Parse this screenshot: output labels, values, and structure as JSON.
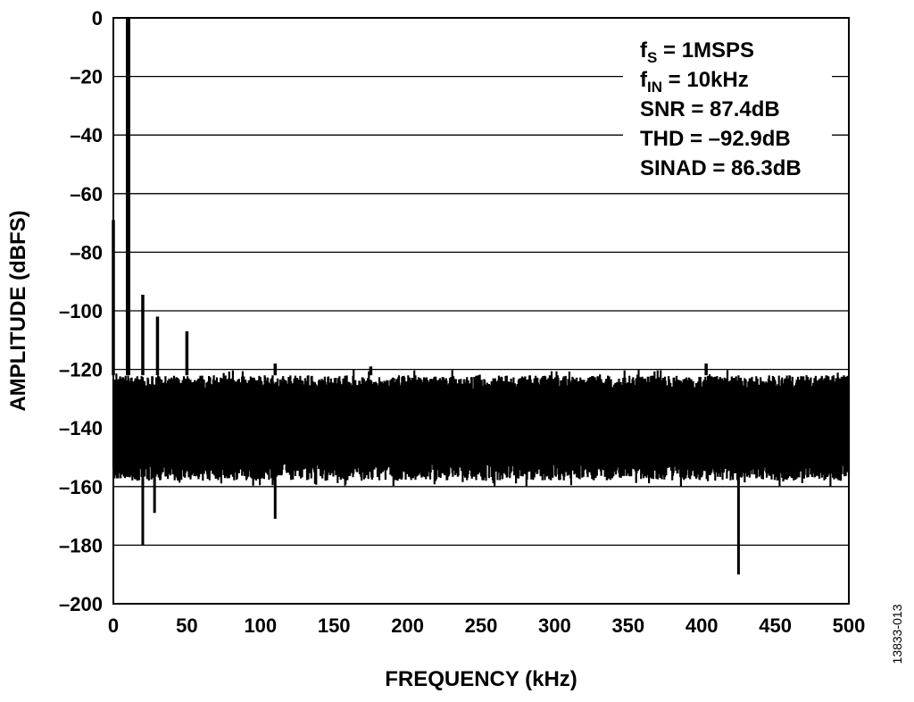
{
  "chart_data": {
    "type": "line",
    "title": "",
    "xlabel": "FREQUENCY (kHz)",
    "ylabel": "AMPLITUDE (dBFS)",
    "xlim": [
      0,
      500
    ],
    "ylim": [
      -200,
      0
    ],
    "x_ticks": [
      0,
      50,
      100,
      150,
      200,
      250,
      300,
      350,
      400,
      450,
      500
    ],
    "y_ticks": [
      0,
      -20,
      -40,
      -60,
      -80,
      -100,
      -120,
      -140,
      -160,
      -180,
      -200
    ],
    "y_tick_labels": [
      "0",
      "–20",
      "–40",
      "–60",
      "–80",
      "–100",
      "–120",
      "–140",
      "–160",
      "–180",
      "–200"
    ],
    "grid": "horizontal",
    "line_color": "#000000",
    "annotations": [
      {
        "base": "f",
        "sub": "S",
        "rest": " = 1MSPS"
      },
      {
        "base": "f",
        "sub": "IN",
        "rest": " = 10kHz"
      },
      {
        "base": "SNR = 87.4dB",
        "sub": "",
        "rest": ""
      },
      {
        "base": "THD = –92.9dB",
        "sub": "",
        "rest": ""
      },
      {
        "base": "SINAD = 86.3dB",
        "sub": "",
        "rest": ""
      }
    ],
    "annotation_placement": "top-right",
    "spurs": [
      {
        "x": 0,
        "y": -69
      },
      {
        "x": 10,
        "y": 0
      },
      {
        "x": 20,
        "y": -94.5
      },
      {
        "x": 30,
        "y": -102
      },
      {
        "x": 50,
        "y": -107
      },
      {
        "x": 110,
        "y": -118
      },
      {
        "x": 175,
        "y": -119
      },
      {
        "x": 403,
        "y": -118
      }
    ],
    "noise_floor": {
      "top": -122,
      "bottom": -152,
      "min_dips_to": -160
    },
    "dips": [
      {
        "x": 20,
        "y": -180
      },
      {
        "x": 28,
        "y": -169
      },
      {
        "x": 110,
        "y": -171
      },
      {
        "x": 425,
        "y": -190
      }
    ]
  },
  "figure_id": "13833-013"
}
